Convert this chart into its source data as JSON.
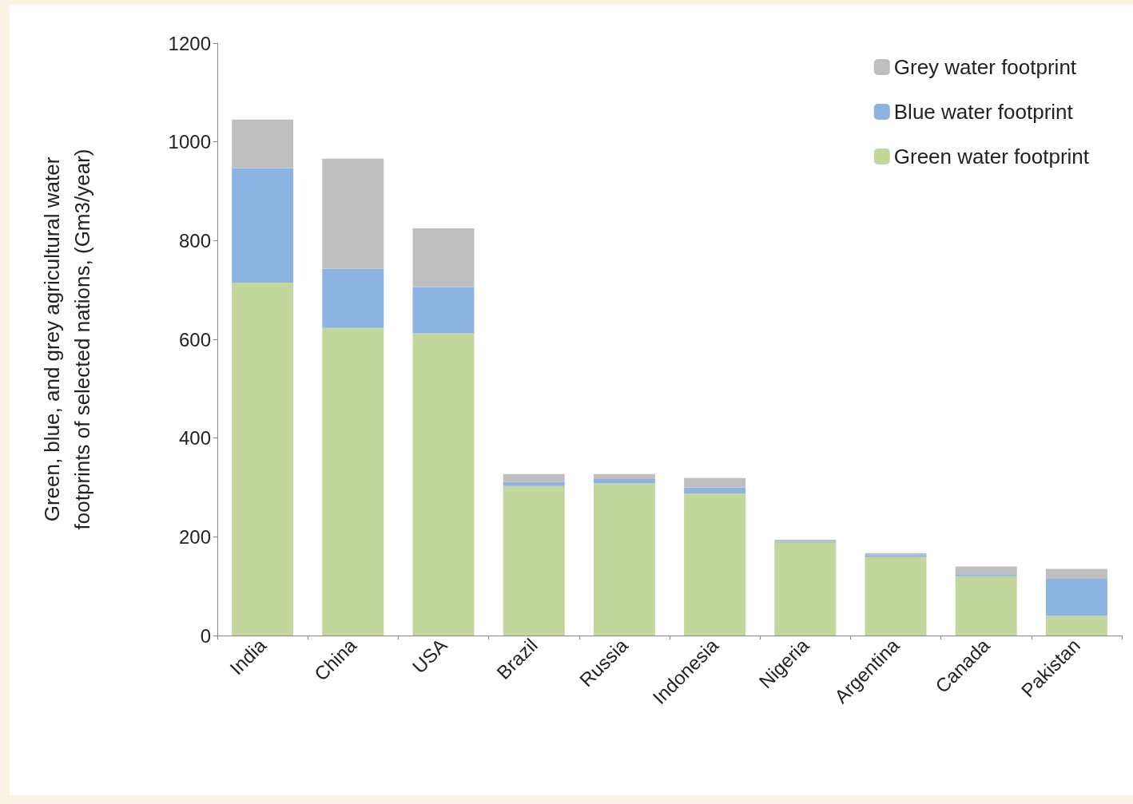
{
  "chart_data": {
    "type": "bar",
    "stacked": true,
    "ylabel": "Green, blue, and grey agricultural water\nfootprints of selected nations, (Gm3/year)",
    "categories": [
      "India",
      "China",
      "USA",
      "Brazil",
      "Russia",
      "Indonesia",
      "Nigeria",
      "Argentina",
      "Canada",
      "Pakistan"
    ],
    "series": [
      {
        "name": "Green water footprint",
        "color": "#c3d69b",
        "values": [
          715,
          623,
          612,
          303,
          308,
          288,
          188,
          159,
          120,
          40
        ]
      },
      {
        "name": "Blue water footprint",
        "color": "#8db3e2",
        "values": [
          232,
          120,
          94,
          8,
          9,
          12,
          2,
          4,
          4,
          75
        ]
      },
      {
        "name": "Grey water footprint",
        "color": "#bfbfbf",
        "values": [
          98,
          223,
          119,
          16,
          10,
          19,
          4,
          4,
          16,
          20
        ]
      }
    ],
    "ylim": [
      0,
      1200
    ],
    "yticks": [
      0,
      200,
      400,
      600,
      800,
      1000,
      1200
    ],
    "grid": false,
    "legend": "top right"
  }
}
